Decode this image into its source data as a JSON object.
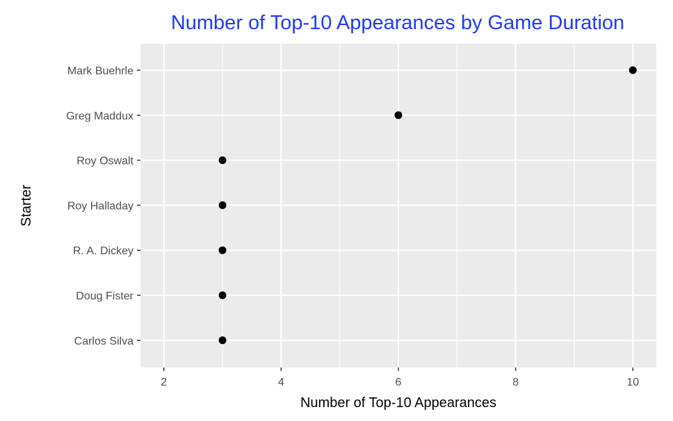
{
  "chart_data": {
    "type": "scatter",
    "title": "Number of Top-10 Appearances by Game Duration",
    "xlabel": "Number of Top-10 Appearances",
    "ylabel": "Starter",
    "xlim": [
      1.6,
      10.4
    ],
    "x_ticks": [
      2,
      4,
      6,
      8,
      10
    ],
    "x_tick_labels": [
      "2",
      "4",
      "6",
      "8",
      "10"
    ],
    "categories": [
      "Mark Buehrle",
      "Greg Maddux",
      "Roy Oswalt",
      "Roy Halladay",
      "R. A. Dickey",
      "Doug Fister",
      "Carlos Silva"
    ],
    "values": [
      10,
      6,
      3,
      3,
      3,
      3,
      3
    ],
    "grid": true,
    "legend": "none"
  },
  "colors": {
    "title": "#1f3bff",
    "panel_background": "#ebebeb",
    "grid": "#ffffff",
    "point": "#000000",
    "tick_label": "#4d4d4d"
  }
}
